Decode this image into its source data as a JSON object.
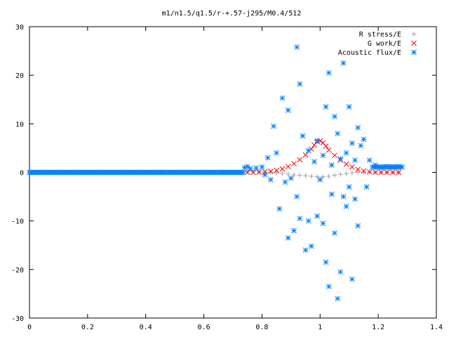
{
  "chart_data": {
    "type": "scatter",
    "title": "m1/n1.5/q1.5/r-+.57-j295/M0.4/512",
    "xlabel": "",
    "ylabel": "",
    "xlim": [
      0,
      1.4
    ],
    "ylim": [
      -30,
      30
    ],
    "x_ticks": [
      "0",
      "0.2",
      "0.4",
      "0.6",
      "0.8",
      "1",
      "1.2",
      "1.4"
    ],
    "y_ticks": [
      "30",
      "20",
      "10",
      "0",
      "-10",
      "-20",
      "-30"
    ],
    "grid": false,
    "legend_position": "top-right",
    "series": [
      {
        "name": "R stress/E",
        "marker": "plus",
        "color": "#a0a0a0",
        "points": [
          [
            0.75,
            0.2
          ],
          [
            0.77,
            0.15
          ],
          [
            0.79,
            0.1
          ],
          [
            0.81,
            0.05
          ],
          [
            0.83,
            0.0
          ],
          [
            0.85,
            -0.1
          ],
          [
            0.87,
            -0.2
          ],
          [
            0.89,
            -0.35
          ],
          [
            0.91,
            -0.5
          ],
          [
            0.93,
            -0.6
          ],
          [
            0.95,
            -0.7
          ],
          [
            0.97,
            -0.8
          ],
          [
            0.99,
            -0.9
          ],
          [
            1.01,
            -0.9
          ],
          [
            1.03,
            -0.8
          ],
          [
            1.05,
            -0.6
          ],
          [
            1.07,
            -0.4
          ],
          [
            1.09,
            -0.25
          ],
          [
            1.11,
            -0.1
          ],
          [
            1.13,
            0.0
          ],
          [
            1.15,
            0.05
          ],
          [
            1.17,
            0.05
          ],
          [
            1.19,
            0.03
          ],
          [
            1.21,
            0.02
          ],
          [
            1.23,
            0.0
          ],
          [
            1.25,
            0.0
          ],
          [
            1.27,
            0.0
          ]
        ]
      },
      {
        "name": "G work/E",
        "marker": "cross",
        "color": "#ff0000",
        "points": [
          [
            0.75,
            0.0
          ],
          [
            0.77,
            0.0
          ],
          [
            0.79,
            0.05
          ],
          [
            0.81,
            0.1
          ],
          [
            0.83,
            0.2
          ],
          [
            0.85,
            0.4
          ],
          [
            0.87,
            0.7
          ],
          [
            0.89,
            1.2
          ],
          [
            0.91,
            1.8
          ],
          [
            0.93,
            2.6
          ],
          [
            0.95,
            3.6
          ],
          [
            0.97,
            4.8
          ],
          [
            0.98,
            5.6
          ],
          [
            0.99,
            6.3
          ],
          [
            1.0,
            6.5
          ],
          [
            1.01,
            6.1
          ],
          [
            1.02,
            5.4
          ],
          [
            1.03,
            4.6
          ],
          [
            1.05,
            3.5
          ],
          [
            1.07,
            2.5
          ],
          [
            1.09,
            1.7
          ],
          [
            1.11,
            1.1
          ],
          [
            1.13,
            0.6
          ],
          [
            1.15,
            0.3
          ],
          [
            1.17,
            0.1
          ],
          [
            1.19,
            0.0
          ],
          [
            1.21,
            0.0
          ],
          [
            1.23,
            0.0
          ],
          [
            1.25,
            0.0
          ],
          [
            1.27,
            0.0
          ]
        ]
      },
      {
        "name": "Acoustic flux/E",
        "marker": "star",
        "color": "#0080ff",
        "points": [
          [
            0.74,
            1.0
          ],
          [
            0.75,
            1.2
          ],
          [
            0.76,
            0.8
          ],
          [
            0.78,
            0.9
          ],
          [
            0.8,
            1.1
          ],
          [
            0.81,
            -0.5
          ],
          [
            0.82,
            3.0
          ],
          [
            0.83,
            -1.5
          ],
          [
            0.84,
            9.5
          ],
          [
            0.85,
            4.0
          ],
          [
            0.86,
            -7.5
          ],
          [
            0.87,
            15.3
          ],
          [
            0.88,
            -2.0
          ],
          [
            0.89,
            12.8
          ],
          [
            0.89,
            -13.5
          ],
          [
            0.9,
            -1.2
          ],
          [
            0.91,
            -12.0
          ],
          [
            0.92,
            25.8
          ],
          [
            0.92,
            -5.0
          ],
          [
            0.93,
            18.2
          ],
          [
            0.93,
            -9.5
          ],
          [
            0.94,
            7.5
          ],
          [
            0.95,
            -16.0
          ],
          [
            0.96,
            -10.0
          ],
          [
            0.96,
            4.5
          ],
          [
            0.97,
            -15.2
          ],
          [
            0.98,
            2.2
          ],
          [
            0.99,
            -9.0
          ],
          [
            0.99,
            6.5
          ],
          [
            1.0,
            -1.5
          ],
          [
            1.01,
            -10.5
          ],
          [
            1.01,
            3.5
          ],
          [
            1.02,
            13.5
          ],
          [
            1.02,
            -18.5
          ],
          [
            1.03,
            20.5
          ],
          [
            1.03,
            -23.5
          ],
          [
            1.04,
            -4.5
          ],
          [
            1.04,
            1.5
          ],
          [
            1.05,
            11.5
          ],
          [
            1.05,
            -12.5
          ],
          [
            1.06,
            -26.0
          ],
          [
            1.06,
            8.0
          ],
          [
            1.07,
            -20.5
          ],
          [
            1.07,
            2.8
          ],
          [
            1.08,
            22.5
          ],
          [
            1.08,
            -5.0
          ],
          [
            1.09,
            -7.0
          ],
          [
            1.09,
            4.0
          ],
          [
            1.1,
            13.5
          ],
          [
            1.1,
            -3.0
          ],
          [
            1.11,
            -22.0
          ],
          [
            1.11,
            6.0
          ],
          [
            1.12,
            2.5
          ],
          [
            1.12,
            -5.5
          ],
          [
            1.13,
            9.2
          ],
          [
            1.13,
            -11.0
          ],
          [
            1.14,
            5.5
          ],
          [
            1.15,
            6.8
          ],
          [
            1.16,
            -3.0
          ],
          [
            1.17,
            2.5
          ],
          [
            1.19,
            1.5
          ],
          [
            1.21,
            1.0
          ],
          [
            1.23,
            1.2
          ],
          [
            1.25,
            1.1
          ],
          [
            1.27,
            1.2
          ]
        ]
      }
    ]
  }
}
